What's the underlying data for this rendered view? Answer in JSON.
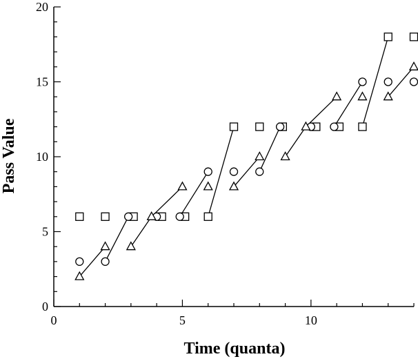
{
  "chart_data": {
    "type": "scatter",
    "title": "",
    "xlabel": "Time (quanta)",
    "ylabel": "Pass Value",
    "xlim": [
      0,
      14
    ],
    "ylim": [
      0,
      20
    ],
    "x_ticks": [
      0,
      5,
      10
    ],
    "y_ticks": [
      0,
      5,
      10,
      15,
      20
    ],
    "x_tick_labels": [
      "0",
      "5",
      "10"
    ],
    "y_tick_labels": [
      "0",
      "5",
      "10",
      "15",
      "20"
    ],
    "grid": false,
    "legend": "none",
    "series": [
      {
        "marker": "square",
        "points": [
          [
            1,
            6
          ],
          [
            2,
            6
          ],
          [
            3.1,
            6
          ],
          [
            4.2,
            6
          ],
          [
            5.1,
            6
          ],
          [
            6,
            6
          ],
          [
            7,
            12
          ],
          [
            8,
            12
          ],
          [
            8.9,
            12
          ],
          [
            10.2,
            12
          ],
          [
            11.1,
            12
          ],
          [
            12,
            12
          ],
          [
            13,
            18
          ],
          [
            14,
            18
          ]
        ]
      },
      {
        "marker": "circle",
        "points": [
          [
            1,
            3
          ],
          [
            2,
            3
          ],
          [
            2.9,
            6
          ],
          [
            4,
            6
          ],
          [
            4.9,
            6
          ],
          [
            6,
            9
          ],
          [
            7,
            9
          ],
          [
            8,
            9
          ],
          [
            8.8,
            12
          ],
          [
            10,
            12
          ],
          [
            10.9,
            12
          ],
          [
            12,
            15
          ],
          [
            13,
            15
          ],
          [
            14,
            15
          ]
        ]
      },
      {
        "marker": "triangle",
        "points": [
          [
            1,
            2
          ],
          [
            2,
            4
          ],
          [
            3,
            4
          ],
          [
            3.8,
            6
          ],
          [
            5,
            8
          ],
          [
            6,
            8
          ],
          [
            7,
            8
          ],
          [
            8,
            10
          ],
          [
            9,
            10
          ],
          [
            9.8,
            12
          ],
          [
            11,
            14
          ],
          [
            12,
            14
          ],
          [
            13,
            14
          ],
          [
            14,
            16
          ]
        ]
      }
    ],
    "connectors": [
      [
        [
          1,
          2
        ],
        [
          2,
          4
        ]
      ],
      [
        [
          2,
          3
        ],
        [
          2.9,
          6
        ]
      ],
      [
        [
          3,
          4
        ],
        [
          3.8,
          6
        ]
      ],
      [
        [
          3.8,
          6
        ],
        [
          5,
          8
        ]
      ],
      [
        [
          4.9,
          6
        ],
        [
          6,
          9
        ]
      ],
      [
        [
          6,
          6
        ],
        [
          7,
          12
        ]
      ],
      [
        [
          7,
          8
        ],
        [
          8,
          10
        ]
      ],
      [
        [
          8,
          9
        ],
        [
          8.8,
          12
        ]
      ],
      [
        [
          9,
          10
        ],
        [
          9.8,
          12
        ]
      ],
      [
        [
          9.8,
          12
        ],
        [
          11,
          14
        ]
      ],
      [
        [
          10.9,
          12
        ],
        [
          12,
          15
        ]
      ],
      [
        [
          12,
          12
        ],
        [
          13,
          18
        ]
      ],
      [
        [
          13,
          14
        ],
        [
          14,
          16
        ]
      ]
    ]
  }
}
